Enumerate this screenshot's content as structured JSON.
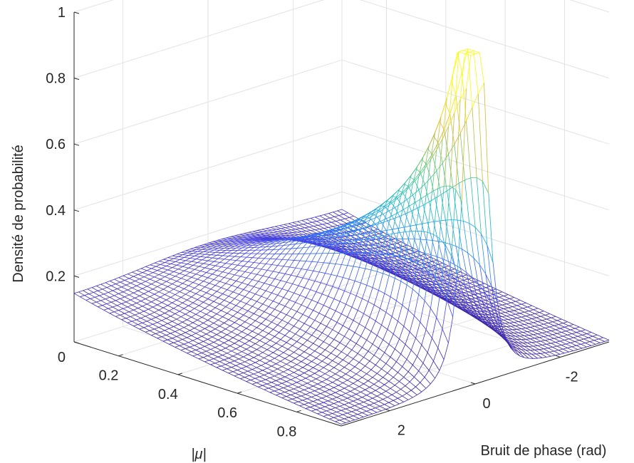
{
  "chart_data": {
    "type": "surface",
    "title": "",
    "xlabel": "|μ|",
    "ylabel": "Bruit de phase (rad)",
    "zlabel": "Densité de probabilité",
    "xlim": [
      0.05,
      0.95
    ],
    "ylim": [
      -3.14159,
      3.14159
    ],
    "zlim": [
      0,
      1
    ],
    "xticks": [
      {
        "value": 0.2,
        "label": "0.2"
      },
      {
        "value": 0.4,
        "label": "0.4"
      },
      {
        "value": 0.6,
        "label": "0.6"
      },
      {
        "value": 0.8,
        "label": "0.8"
      }
    ],
    "yticks": [
      {
        "value": -2,
        "label": "-2"
      },
      {
        "value": 0,
        "label": "0"
      },
      {
        "value": 2,
        "label": "2"
      }
    ],
    "zticks": [
      {
        "value": 0,
        "label": "0"
      },
      {
        "value": 0.2,
        "label": "0.2"
      },
      {
        "value": 0.4,
        "label": "0.4"
      },
      {
        "value": 0.6,
        "label": "0.6"
      },
      {
        "value": 0.8,
        "label": "0.8"
      },
      {
        "value": 1,
        "label": "1"
      }
    ],
    "grid": true,
    "colormap": "parula",
    "colormap_stops": [
      "#3e26a8",
      "#4744e8",
      "#2c8af9",
      "#13bdc6",
      "#58c976",
      "#dcb833",
      "#f9fb15"
    ],
    "mesh": {
      "x_range": [
        0.05,
        0.95
      ],
      "x_samples": 46,
      "y_range": [
        -3.14159,
        3.14159
      ],
      "y_samples": 61,
      "function": "probability density of phase noise vs |μ|",
      "peak": {
        "x": 0.95,
        "y": 0,
        "z": 0.87
      },
      "floor_value": 0.159
    }
  }
}
